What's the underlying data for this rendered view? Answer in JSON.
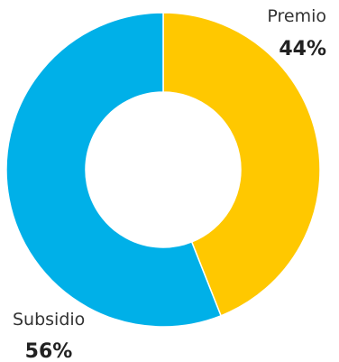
{
  "chart_data": {
    "type": "pie",
    "donut": true,
    "title": "",
    "legend": "none",
    "slices": [
      {
        "name": "Premio",
        "value": 44,
        "value_label": "44%",
        "color": "#FFC800"
      },
      {
        "name": "Subsidio",
        "value": 56,
        "value_label": "56%",
        "color": "#00B0E8"
      }
    ]
  }
}
